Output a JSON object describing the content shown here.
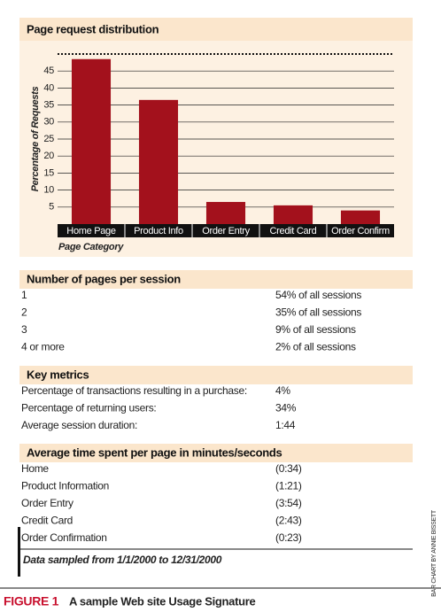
{
  "chart_data": {
    "type": "bar",
    "title": "Page request distribution",
    "y_label": "Percentage of Requests",
    "x_label": "Page Category",
    "categories": [
      "Home Page",
      "Product Info",
      "Order Entry",
      "Credit Card",
      "Order Confirm"
    ],
    "values": [
      48.5,
      36.5,
      6.5,
      5.5,
      4
    ],
    "color": "#a3111c",
    "ylim": [
      0,
      50
    ],
    "yticks": [
      5,
      10,
      15,
      20,
      25,
      30,
      35,
      40,
      45
    ],
    "grid": true
  },
  "sections": [
    {
      "title": "Number of pages per session",
      "rows": [
        [
          "1",
          "54% of all sessions"
        ],
        [
          "2",
          "35% of all sessions"
        ],
        [
          "3",
          "9% of all sessions"
        ],
        [
          "4 or more",
          "2% of all sessions"
        ]
      ]
    },
    {
      "title": "Key metrics",
      "rows": [
        [
          "Percentage of transactions resulting in a purchase:",
          "4%"
        ],
        [
          "Percentage of returning users:",
          "34%"
        ],
        [
          "Average session duration:",
          "1:44"
        ]
      ]
    },
    {
      "title": "Average time spent per page in minutes/seconds",
      "rows": [
        [
          "Home",
          "(0:34)"
        ],
        [
          "Product Information",
          "(1:21)"
        ],
        [
          "Order Entry",
          "(3:54)"
        ],
        [
          "Credit Card",
          "(2:43)"
        ],
        [
          "Order Confirmation",
          "(0:23)"
        ]
      ]
    }
  ],
  "note": "Data sampled from 1/1/2000 to 12/31/2000",
  "figure": {
    "label": "FIGURE 1",
    "caption": "A sample Web site Usage Signature"
  },
  "credit": "BAR CHART BY ANNIE BISSETT"
}
